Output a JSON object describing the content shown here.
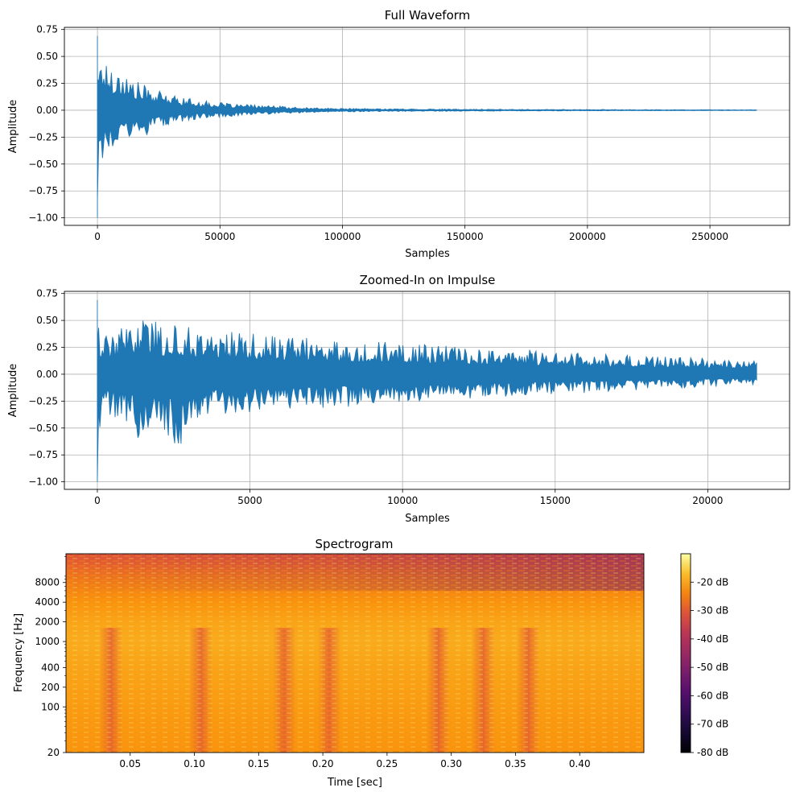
{
  "chart_data": [
    {
      "type": "line",
      "title": "Full Waveform",
      "xlabel": "Samples",
      "ylabel": "Amplitude",
      "xlim": [
        -13500,
        282500
      ],
      "ylim": [
        -1.07,
        0.77
      ],
      "xticks": [
        0,
        50000,
        100000,
        150000,
        200000,
        250000
      ],
      "xtick_labels": [
        "0",
        "50000",
        "100000",
        "150000",
        "200000",
        "250000"
      ],
      "yticks": [
        0.75,
        0.5,
        0.25,
        0.0,
        -0.25,
        -0.5,
        -0.75,
        -1.0
      ],
      "ytick_labels": [
        "0.75",
        "0.50",
        "0.25",
        "0.00",
        "−0.25",
        "−0.50",
        "−0.75",
        "−1.00"
      ],
      "grid": true,
      "color": "#1f77b4",
      "series": [
        {
          "x": [
            0,
            25,
            60,
            120,
            250,
            500,
            1000,
            2000,
            3000,
            5000,
            7500,
            10000,
            15000,
            20000,
            25000,
            30000,
            40000,
            50000,
            60000,
            70000,
            80000,
            90000,
            100000,
            120000,
            150000,
            200000,
            240000,
            269000
          ],
          "upper": [
            0.69,
            0.68,
            0.52,
            0.42,
            0.38,
            0.5,
            0.49,
            0.57,
            0.47,
            0.45,
            0.4,
            0.38,
            0.28,
            0.23,
            0.18,
            0.15,
            0.1,
            0.07,
            0.055,
            0.045,
            0.03,
            0.022,
            0.018,
            0.014,
            0.01,
            0.007,
            0.005,
            0.004
          ],
          "lower": [
            -1.0,
            -0.9,
            -0.55,
            -0.42,
            -0.38,
            -0.66,
            -0.6,
            -0.75,
            -0.5,
            -0.45,
            -0.4,
            -0.35,
            -0.28,
            -0.23,
            -0.17,
            -0.13,
            -0.09,
            -0.065,
            -0.05,
            -0.04,
            -0.028,
            -0.02,
            -0.016,
            -0.012,
            -0.009,
            -0.006,
            -0.004,
            -0.003
          ]
        }
      ]
    },
    {
      "type": "line",
      "title": "Zoomed-In on Impulse",
      "xlabel": "Samples",
      "ylabel": "Amplitude",
      "xlim": [
        -1080,
        22680
      ],
      "ylim": [
        -1.07,
        0.77
      ],
      "xticks": [
        0,
        5000,
        10000,
        15000,
        20000
      ],
      "xtick_labels": [
        "0",
        "5000",
        "10000",
        "15000",
        "20000"
      ],
      "yticks": [
        0.75,
        0.5,
        0.25,
        0.0,
        -0.25,
        -0.5,
        -0.75,
        -1.0
      ],
      "ytick_labels": [
        "0.75",
        "0.50",
        "0.25",
        "0.00",
        "−0.25",
        "−0.50",
        "−0.75",
        "−1.00"
      ],
      "grid": true,
      "color": "#1f77b4",
      "series": [
        {
          "x": [
            0,
            50,
            100,
            200,
            500,
            1000,
            1400,
            2000,
            2800,
            3500,
            4500,
            5500,
            7000,
            8500,
            10000,
            11000,
            12500,
            14000,
            15500,
            17000,
            18500,
            20000,
            21000,
            21600
          ],
          "upper": [
            0.69,
            0.66,
            0.4,
            0.36,
            0.4,
            0.45,
            0.57,
            0.48,
            0.47,
            0.42,
            0.4,
            0.36,
            0.34,
            0.32,
            0.3,
            0.28,
            0.25,
            0.23,
            0.21,
            0.18,
            0.17,
            0.16,
            0.15,
            0.14
          ],
          "lower": [
            -1.0,
            -0.92,
            -0.4,
            -0.38,
            -0.4,
            -0.45,
            -0.66,
            -0.52,
            -0.75,
            -0.42,
            -0.38,
            -0.34,
            -0.32,
            -0.3,
            -0.28,
            -0.26,
            -0.23,
            -0.2,
            -0.18,
            -0.16,
            -0.14,
            -0.12,
            -0.11,
            -0.1
          ]
        }
      ]
    },
    {
      "type": "heatmap",
      "title": "Spectrogram",
      "xlabel": "Time [sec]",
      "ylabel": "Frequency [Hz]",
      "xlim": [
        0.0,
        0.45
      ],
      "ylim": [
        20,
        22050
      ],
      "yscale": "log",
      "xticks": [
        0.05,
        0.1,
        0.15,
        0.2,
        0.25,
        0.3,
        0.35,
        0.4
      ],
      "xtick_labels": [
        "0.05",
        "0.10",
        "0.15",
        "0.20",
        "0.25",
        "0.30",
        "0.35",
        "0.40"
      ],
      "yticks": [
        20,
        100,
        200,
        400,
        1000,
        2000,
        4000,
        8000
      ],
      "ytick_labels": [
        "20",
        "100",
        "200",
        "400",
        "1000",
        "2000",
        "4000",
        "8000"
      ],
      "colormap": "inferno",
      "colorbar": {
        "range_db": [
          -80,
          -10
        ],
        "ticks": [
          -20,
          -30,
          -40,
          -50,
          -60,
          -70,
          -80
        ],
        "tick_labels": [
          "-20 dB",
          "-30 dB",
          "-40 dB",
          "-50 dB",
          "-60 dB",
          "-70 dB",
          "-80 dB"
        ]
      },
      "level_db_by_frequency": {
        "freqs": [
          20,
          100,
          400,
          1000,
          2000,
          4000,
          8000,
          12000,
          16000,
          22050
        ],
        "early_db": [
          -22,
          -21,
          -20,
          -19,
          -20,
          -22,
          -25,
          -27,
          -29,
          -31
        ],
        "late_db": [
          -23,
          -22,
          -22,
          -22,
          -24,
          -27,
          -34,
          -40,
          -46,
          -52
        ]
      },
      "dark_bands_sec": [
        0.035,
        0.105,
        0.17,
        0.205,
        0.29,
        0.325,
        0.36
      ]
    }
  ]
}
